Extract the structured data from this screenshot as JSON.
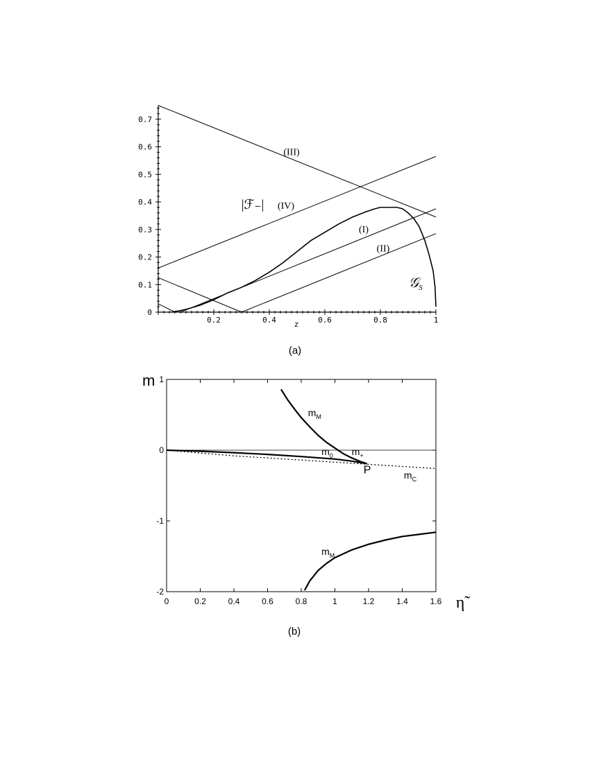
{
  "chart_data": [
    {
      "type": "line",
      "panel_label": "(a)",
      "xlabel": "z",
      "ylabel": "",
      "xlim": [
        0,
        1
      ],
      "ylim": [
        0,
        0.75
      ],
      "x_ticks": [
        "0.2",
        "0.4",
        "0.6",
        "0.8",
        "1"
      ],
      "y_ticks": [
        "0",
        "0.1",
        "0.2",
        "0.3",
        "0.4",
        "0.5",
        "0.6",
        "0.7"
      ],
      "grid": false,
      "series": [
        {
          "name": "(III)",
          "x": [
            0,
            1
          ],
          "y": [
            0.75,
            0.345
          ]
        },
        {
          "name": "(IV)",
          "x": [
            0,
            1
          ],
          "y": [
            0.16,
            0.565
          ]
        },
        {
          "name": "(I)",
          "x": [
            0.08,
            1
          ],
          "y": [
            0.0,
            0.375
          ]
        },
        {
          "name": "(II)",
          "x": [
            0.3,
            1
          ],
          "y": [
            0.0,
            0.285
          ]
        },
        {
          "name": "",
          "x": [
            0,
            0.3
          ],
          "y": [
            0.125,
            0.0
          ]
        },
        {
          "name": "",
          "x": [
            0,
            0.06
          ],
          "y": [
            0.03,
            0.0
          ]
        },
        {
          "name": "G_S",
          "x": [
            0.05,
            0.1,
            0.15,
            0.2,
            0.25,
            0.3,
            0.35,
            0.4,
            0.45,
            0.5,
            0.55,
            0.6,
            0.65,
            0.7,
            0.75,
            0.78,
            0.8,
            0.83,
            0.86,
            0.88,
            0.9,
            0.92,
            0.94,
            0.96,
            0.975,
            0.99,
            0.997,
            1.0
          ],
          "y": [
            0.0,
            0.01,
            0.025,
            0.045,
            0.07,
            0.09,
            0.115,
            0.145,
            0.18,
            0.22,
            0.26,
            0.29,
            0.32,
            0.345,
            0.365,
            0.375,
            0.38,
            0.38,
            0.38,
            0.375,
            0.36,
            0.34,
            0.31,
            0.26,
            0.21,
            0.15,
            0.09,
            0.02
          ]
        }
      ],
      "annotations": [
        {
          "text": "(III)",
          "x": 0.48,
          "y": 0.57
        },
        {
          "text": "|ℱ₋|",
          "x": 0.34,
          "y": 0.375
        },
        {
          "text": "(IV)",
          "x": 0.46,
          "y": 0.375
        },
        {
          "text": "(I)",
          "x": 0.74,
          "y": 0.29
        },
        {
          "text": "(II)",
          "x": 0.81,
          "y": 0.22
        },
        {
          "text": "𝒢",
          "x": 0.92,
          "y": 0.09
        },
        {
          "text": "S",
          "x": 0.945,
          "y": 0.08
        }
      ]
    },
    {
      "type": "line",
      "panel_label": "(b)",
      "xlabel": "η̃",
      "ylabel": "m",
      "xlim": [
        0,
        1.6
      ],
      "ylim": [
        -2,
        1
      ],
      "x_ticks": [
        "0",
        "0.2",
        "0.4",
        "0.6",
        "0.8",
        "1",
        "1.2",
        "1.4",
        "1.6"
      ],
      "y_ticks": [
        "1",
        "0",
        "-1",
        "-2"
      ],
      "grid": false,
      "zero_line": true,
      "series": [
        {
          "name": "m_M upper",
          "style": "solid-thick",
          "x": [
            0.68,
            0.72,
            0.76,
            0.8,
            0.85,
            0.9,
            0.95,
            1.0,
            1.05,
            1.1,
            1.15,
            1.19
          ],
          "y": [
            0.86,
            0.71,
            0.58,
            0.46,
            0.33,
            0.21,
            0.11,
            0.03,
            -0.05,
            -0.11,
            -0.16,
            -0.19
          ]
        },
        {
          "name": "m_0",
          "style": "solid-thick",
          "x": [
            0,
            0.2,
            0.4,
            0.6,
            0.8,
            1.0,
            1.1,
            1.19
          ],
          "y": [
            0.0,
            -0.015,
            -0.035,
            -0.06,
            -0.09,
            -0.125,
            -0.155,
            -0.19
          ]
        },
        {
          "name": "m_C",
          "style": "dotted",
          "x": [
            0,
            0.2,
            0.4,
            0.6,
            0.8,
            1.0,
            1.2,
            1.4,
            1.6
          ],
          "y": [
            0.0,
            -0.04,
            -0.08,
            -0.11,
            -0.14,
            -0.17,
            -0.2,
            -0.23,
            -0.26
          ]
        },
        {
          "name": "m_M lower",
          "style": "solid-thick",
          "x": [
            0.82,
            0.85,
            0.9,
            0.95,
            1.0,
            1.1,
            1.2,
            1.3,
            1.4,
            1.5,
            1.6
          ],
          "y": [
            -1.98,
            -1.85,
            -1.7,
            -1.6,
            -1.52,
            -1.41,
            -1.33,
            -1.27,
            -1.22,
            -1.19,
            -1.16
          ]
        }
      ],
      "annotations": [
        {
          "text": "m",
          "sub": "M",
          "x": 0.84,
          "y": 0.48
        },
        {
          "text": "m",
          "sub": "0",
          "x": 0.92,
          "y": -0.07
        },
        {
          "text": "m",
          "sub": "+",
          "x": 1.1,
          "y": -0.07
        },
        {
          "text": "P",
          "x": 1.17,
          "y": -0.33,
          "sub": ""
        },
        {
          "text": "m",
          "sub": "C",
          "x": 1.41,
          "y": -0.4
        },
        {
          "text": "m",
          "sub": "M",
          "x": 0.92,
          "y": -1.48
        }
      ]
    }
  ]
}
